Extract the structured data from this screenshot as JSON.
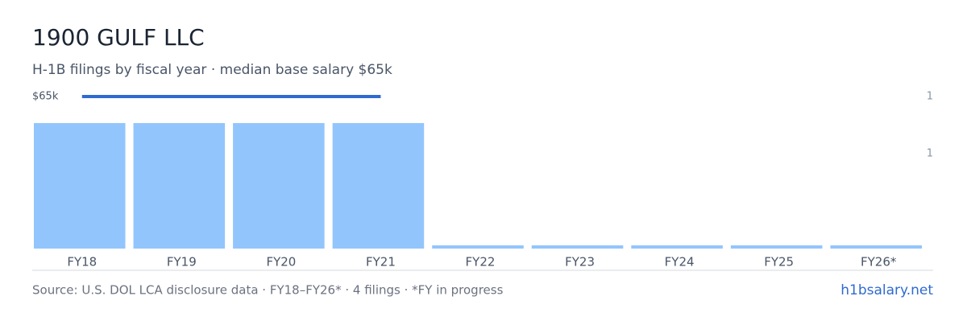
{
  "chart_data": {
    "type": "bar",
    "title": "1900 GULF LLC",
    "subtitle": "H-1B filings by fiscal year · median base salary $65k",
    "categories": [
      "FY18",
      "FY19",
      "FY20",
      "FY21",
      "FY22",
      "FY23",
      "FY24",
      "FY25",
      "FY26*"
    ],
    "values": [
      1,
      1,
      1,
      1,
      0,
      0,
      0,
      0,
      0
    ],
    "color": "#93c5fd",
    "ylim": [
      0,
      1
    ],
    "salary": {
      "values": [
        65000,
        65000,
        65000,
        65000,
        null,
        null,
        null,
        null,
        null
      ],
      "label": "$65k",
      "color": "#2f6ad0"
    },
    "right_labels": [
      1,
      1
    ],
    "source": "Source: U.S. DOL LCA disclosure data · FY18–FY26* · 4 filings · *FY in progress",
    "brand": "h1bsalary.net"
  }
}
